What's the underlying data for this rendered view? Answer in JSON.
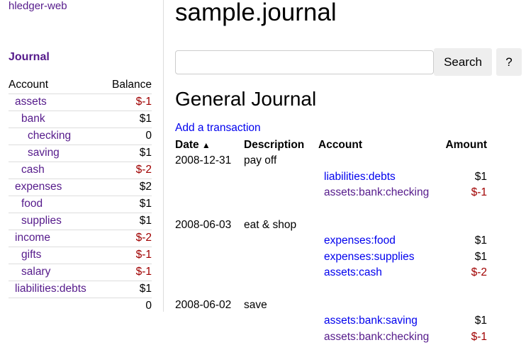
{
  "sidebar": {
    "brand": "hledger-web",
    "journal_link": "Journal",
    "headers": {
      "account": "Account",
      "balance": "Balance"
    },
    "accounts": [
      {
        "name": "assets",
        "balance": "$-1",
        "depth": 1,
        "negative": true
      },
      {
        "name": "bank",
        "balance": "$1",
        "depth": 2,
        "negative": false
      },
      {
        "name": "checking",
        "balance": "0",
        "depth": 3,
        "negative": false
      },
      {
        "name": "saving",
        "balance": "$1",
        "depth": 3,
        "negative": false
      },
      {
        "name": "cash",
        "balance": "$-2",
        "depth": 2,
        "negative": true
      },
      {
        "name": "expenses",
        "balance": "$2",
        "depth": 1,
        "negative": false
      },
      {
        "name": "food",
        "balance": "$1",
        "depth": 2,
        "negative": false
      },
      {
        "name": "supplies",
        "balance": "$1",
        "depth": 2,
        "negative": false
      },
      {
        "name": "income",
        "balance": "$-2",
        "depth": 1,
        "negative": true
      },
      {
        "name": "gifts",
        "balance": "$-1",
        "depth": 2,
        "negative": true
      },
      {
        "name": "salary",
        "balance": "$-1",
        "depth": 2,
        "negative": true
      },
      {
        "name": "liabilities:debts",
        "balance": "$1",
        "depth": 1,
        "negative": false
      }
    ],
    "total": "0"
  },
  "main": {
    "title": "sample.journal",
    "search": {
      "value": "",
      "button": "Search",
      "help": "?"
    },
    "heading": "General Journal",
    "add_link": "Add a transaction",
    "columns": {
      "date": "Date",
      "sort_icon": "caret-up-icon",
      "description": "Description",
      "account": "Account",
      "amount": "Amount"
    },
    "transactions": [
      {
        "date": "2008-12-31",
        "description": "pay off",
        "postings": [
          {
            "account": "liabilities:debts",
            "amount": "$1",
            "negative": false,
            "visited": false
          },
          {
            "account": "assets:bank:checking",
            "amount": "$-1",
            "negative": true,
            "visited": true
          }
        ]
      },
      {
        "date": "2008-06-03",
        "description": "eat & shop",
        "postings": [
          {
            "account": "expenses:food",
            "amount": "$1",
            "negative": false,
            "visited": false
          },
          {
            "account": "expenses:supplies",
            "amount": "$1",
            "negative": false,
            "visited": false
          },
          {
            "account": "assets:cash",
            "amount": "$-2",
            "negative": true,
            "visited": false
          }
        ]
      },
      {
        "date": "2008-06-02",
        "description": "save",
        "postings": [
          {
            "account": "assets:bank:saving",
            "amount": "$1",
            "negative": false,
            "visited": false
          },
          {
            "account": "assets:bank:checking",
            "amount": "$-1",
            "negative": true,
            "visited": true
          }
        ]
      }
    ]
  },
  "colors": {
    "link": "#0000ee",
    "visited": "#551a8b",
    "negative": "#a00000"
  }
}
